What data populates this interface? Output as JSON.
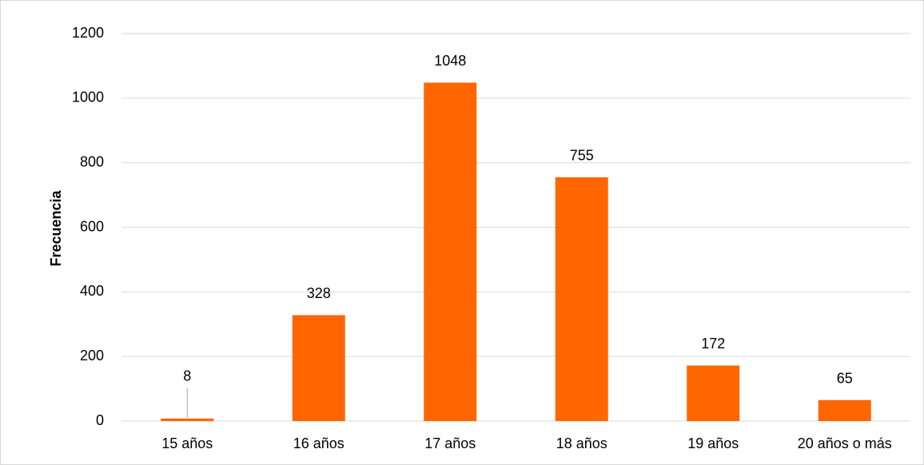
{
  "chart_data": {
    "type": "bar",
    "title": "",
    "xlabel": "",
    "ylabel": "Frecuencia",
    "categories": [
      "15 años",
      "16 años",
      "17 años",
      "18 años",
      "19 años",
      "20 años o más"
    ],
    "values": [
      8,
      328,
      1048,
      755,
      172,
      65
    ],
    "data_labels": [
      "8",
      "328",
      "1048",
      "755",
      "172",
      "65"
    ],
    "ylim": [
      0,
      1200
    ],
    "yticks": [
      "0",
      "200",
      "400",
      "600",
      "800",
      "1000",
      "1200"
    ],
    "grid": true,
    "legend": "none",
    "colors": {
      "bar": "#FF6600",
      "grid": "#d9d9d9",
      "leader_line": "#a6a6a6"
    }
  }
}
